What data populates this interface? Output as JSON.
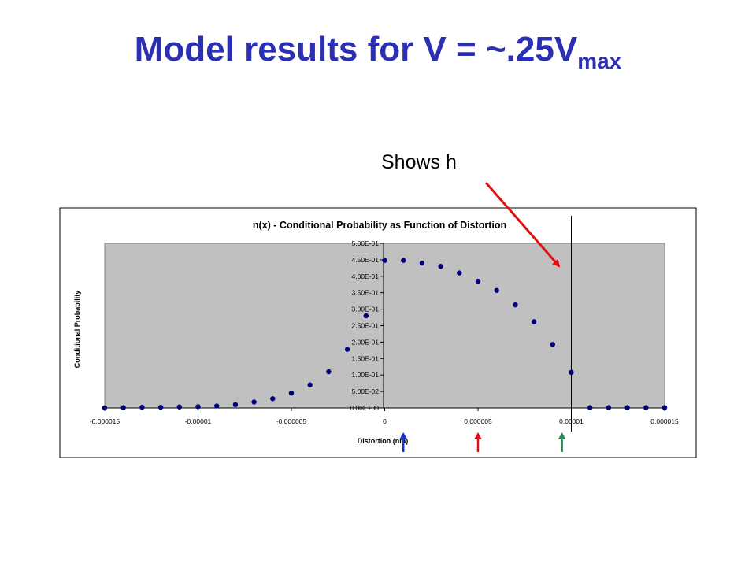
{
  "slide": {
    "title_main": "Model results for V = ~.25V",
    "title_sub": "max",
    "callout": "Shows h"
  },
  "colors": {
    "title": "#2b2fb3",
    "plot_area": "#c0c0c0",
    "marker": "#00007a",
    "arrow_red": "#e01010",
    "arrow_blue": "#1a2fd0",
    "arrow_green": "#2e8b57"
  },
  "chart_data": {
    "type": "scatter",
    "title": "n(x) - Conditional Probability as Function of Distortion",
    "xlabel": "Distortion (nm)",
    "ylabel": "Conditional Probability",
    "xlim": [
      -1.5e-05,
      1.5e-05
    ],
    "ylim": [
      0,
      0.5
    ],
    "x_ticks": [
      -1.5e-05,
      -1e-05,
      -5e-06,
      0,
      5e-06,
      1e-05,
      1.5e-05
    ],
    "x_tick_labels": [
      "-0.000015",
      "-0.00001",
      "-0.000005",
      "0",
      "0.000005",
      "0.00001",
      "0.000015"
    ],
    "y_ticks": [
      0,
      0.05,
      0.1,
      0.15,
      0.2,
      0.25,
      0.3,
      0.35,
      0.4,
      0.45,
      0.5
    ],
    "y_tick_labels": [
      "0.00E+00",
      "5.00E-02",
      "1.00E-01",
      "1.50E-01",
      "2.00E-01",
      "2.50E-01",
      "3.00E-01",
      "3.50E-01",
      "4.00E-01",
      "4.50E-01",
      "5.00E-01"
    ],
    "vertical_line_x": 1e-05,
    "series": [
      {
        "x": [
          -1.5e-05,
          -1.4e-05,
          -1.3e-05,
          -1.2e-05,
          -1.1e-05,
          -1e-05,
          -9e-06,
          -8e-06,
          -7e-06,
          -6e-06,
          -5e-06,
          -4e-06,
          -3e-06,
          -2e-06,
          -1e-06,
          0,
          1e-06,
          2e-06,
          3e-06,
          4e-06,
          5e-06,
          6e-06,
          7e-06,
          8e-06,
          9e-06,
          1e-05,
          1.1e-05,
          1.2e-05,
          1.3e-05,
          1.4e-05,
          1.5e-05
        ],
        "y": [
          0.0005,
          0.001,
          0.002,
          0.002,
          0.003,
          0.004,
          0.006,
          0.01,
          0.018,
          0.028,
          0.045,
          0.07,
          0.11,
          0.178,
          0.28,
          0.448,
          0.448,
          0.44,
          0.43,
          0.41,
          0.385,
          0.357,
          0.313,
          0.262,
          0.193,
          0.108,
          0.001,
          0.001,
          0.001,
          0.001,
          0.001
        ]
      }
    ],
    "arrows": [
      {
        "x": 1e-06,
        "color": "arrow_blue"
      },
      {
        "x": 5e-06,
        "color": "arrow_red"
      },
      {
        "x": 9.5e-06,
        "color": "arrow_green"
      }
    ]
  }
}
